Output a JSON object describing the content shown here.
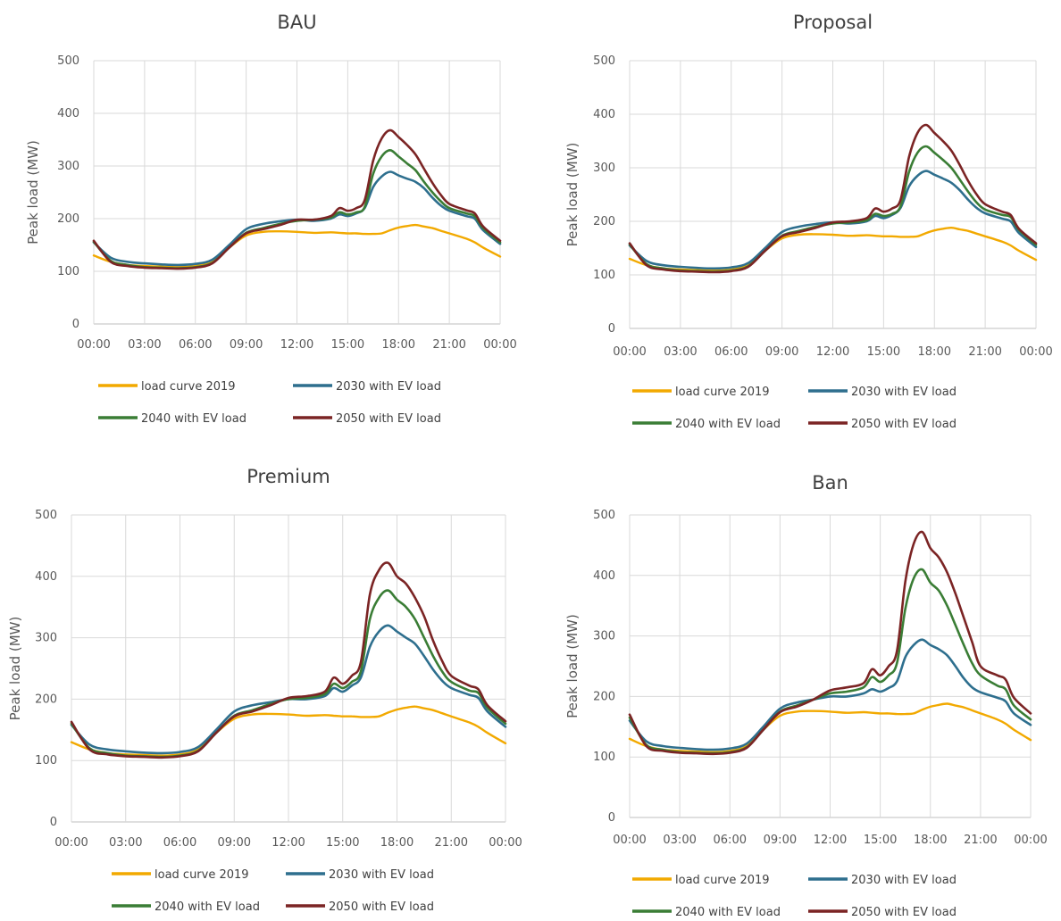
{
  "figure": {
    "legend_labels": [
      "load curve 2019",
      "2030 with EV load",
      "2040 with EV load",
      "2050 with EV load"
    ],
    "colors": [
      "#f2a900",
      "#2e6f8e",
      "#3a7d35",
      "#7b2424"
    ]
  },
  "chart_data": [
    {
      "type": "line",
      "title": "BAU",
      "ylabel": "Peak load (MW)",
      "ylim": [
        0,
        500
      ],
      "y_ticks": [
        "0",
        "100",
        "200",
        "300",
        "400",
        "500"
      ],
      "x_ticks": [
        "00:00",
        "03:00",
        "06:00",
        "09:00",
        "12:00",
        "15:00",
        "18:00",
        "21:00",
        "00:00"
      ],
      "grid": true,
      "legend_position": "bottom",
      "x": [
        0,
        1,
        2,
        3,
        4,
        5,
        6,
        7,
        8,
        9,
        10,
        11,
        12,
        13,
        14,
        14.5,
        15,
        15.5,
        16,
        16.5,
        17,
        17.5,
        18,
        18.5,
        19,
        19.5,
        20,
        20.5,
        21,
        22,
        22.5,
        23,
        24
      ],
      "series": [
        {
          "name": "load curve 2019",
          "values": [
            130,
            118,
            112,
            110,
            109,
            108,
            110,
            118,
            145,
            168,
            175,
            176,
            175,
            173,
            174,
            173,
            172,
            172,
            171,
            171,
            172,
            178,
            183,
            186,
            188,
            185,
            182,
            177,
            172,
            162,
            155,
            145,
            128
          ]
        },
        {
          "name": "2030 with EV load",
          "values": [
            155,
            126,
            118,
            115,
            113,
            112,
            114,
            122,
            150,
            180,
            190,
            195,
            198,
            196,
            200,
            208,
            205,
            210,
            220,
            260,
            280,
            289,
            282,
            276,
            270,
            258,
            240,
            225,
            215,
            205,
            200,
            178,
            152
          ]
        },
        {
          "name": "2040 with EV load",
          "values": [
            156,
            120,
            112,
            108,
            107,
            106,
            108,
            116,
            145,
            173,
            182,
            190,
            196,
            198,
            202,
            212,
            208,
            212,
            222,
            285,
            318,
            330,
            318,
            305,
            292,
            270,
            250,
            233,
            220,
            210,
            205,
            182,
            155
          ]
        },
        {
          "name": "2050 with EV load",
          "values": [
            158,
            118,
            110,
            107,
            106,
            105,
            107,
            115,
            145,
            172,
            180,
            188,
            198,
            198,
            205,
            220,
            215,
            220,
            235,
            310,
            352,
            368,
            355,
            340,
            322,
            295,
            268,
            245,
            228,
            216,
            210,
            185,
            158
          ]
        }
      ]
    },
    {
      "type": "line",
      "title": "Proposal",
      "ylabel": "Peak load (MW)",
      "ylim": [
        0,
        500
      ],
      "y_ticks": [
        "0",
        "100",
        "200",
        "300",
        "400",
        "500"
      ],
      "x_ticks": [
        "00:00",
        "03:00",
        "06:00",
        "09:00",
        "12:00",
        "15:00",
        "18:00",
        "21:00",
        "00:00"
      ],
      "grid": true,
      "legend_position": "bottom",
      "x": [
        0,
        1,
        2,
        3,
        4,
        5,
        6,
        7,
        8,
        9,
        10,
        11,
        12,
        13,
        14,
        14.5,
        15,
        15.5,
        16,
        16.5,
        17,
        17.5,
        18,
        18.5,
        19,
        19.5,
        20,
        20.5,
        21,
        22,
        22.5,
        23,
        24
      ],
      "series": [
        {
          "name": "load curve 2019",
          "values": [
            130,
            118,
            112,
            110,
            109,
            108,
            110,
            118,
            145,
            168,
            175,
            176,
            175,
            173,
            174,
            173,
            172,
            172,
            171,
            171,
            172,
            178,
            183,
            186,
            188,
            185,
            182,
            177,
            172,
            162,
            155,
            145,
            128
          ]
        },
        {
          "name": "2030 with EV load",
          "values": [
            155,
            126,
            118,
            115,
            113,
            112,
            114,
            122,
            150,
            180,
            190,
            195,
            198,
            196,
            200,
            210,
            206,
            212,
            225,
            265,
            285,
            294,
            287,
            280,
            272,
            258,
            240,
            225,
            215,
            205,
            200,
            178,
            152
          ]
        },
        {
          "name": "2040 with EV load",
          "values": [
            157,
            120,
            112,
            108,
            107,
            106,
            108,
            116,
            145,
            173,
            182,
            190,
            196,
            198,
            202,
            214,
            210,
            214,
            228,
            292,
            328,
            340,
            328,
            315,
            300,
            278,
            255,
            235,
            222,
            212,
            208,
            184,
            156
          ]
        },
        {
          "name": "2050 with EV load",
          "values": [
            159,
            118,
            110,
            107,
            106,
            105,
            107,
            115,
            145,
            172,
            180,
            188,
            198,
            200,
            206,
            224,
            218,
            224,
            240,
            320,
            365,
            380,
            365,
            350,
            332,
            305,
            275,
            250,
            232,
            218,
            212,
            186,
            159
          ]
        }
      ]
    },
    {
      "type": "line",
      "title": "Premium",
      "ylabel": "Peak load (MW)",
      "ylim": [
        0,
        500
      ],
      "y_ticks": [
        "0",
        "100",
        "200",
        "300",
        "400",
        "500"
      ],
      "x_ticks": [
        "00:00",
        "03:00",
        "06:00",
        "09:00",
        "12:00",
        "15:00",
        "18:00",
        "21:00",
        "00:00"
      ],
      "grid": true,
      "legend_position": "bottom",
      "x": [
        0,
        1,
        2,
        3,
        4,
        5,
        6,
        7,
        8,
        9,
        10,
        11,
        12,
        13,
        14,
        14.5,
        15,
        15.5,
        16,
        16.5,
        17,
        17.5,
        18,
        18.5,
        19,
        19.5,
        20,
        20.5,
        21,
        22,
        22.5,
        23,
        24
      ],
      "series": [
        {
          "name": "load curve 2019",
          "values": [
            130,
            118,
            112,
            110,
            109,
            108,
            110,
            118,
            145,
            168,
            175,
            176,
            175,
            173,
            174,
            173,
            172,
            172,
            171,
            171,
            172,
            178,
            183,
            186,
            188,
            185,
            182,
            177,
            172,
            162,
            155,
            145,
            128
          ]
        },
        {
          "name": "2030 with EV load",
          "values": [
            158,
            126,
            118,
            115,
            113,
            112,
            114,
            122,
            150,
            180,
            190,
            195,
            200,
            200,
            205,
            218,
            212,
            222,
            235,
            285,
            310,
            320,
            310,
            300,
            290,
            270,
            248,
            230,
            218,
            207,
            202,
            180,
            155
          ]
        },
        {
          "name": "2040 with EV load",
          "values": [
            160,
            120,
            112,
            108,
            107,
            106,
            108,
            116,
            145,
            173,
            182,
            192,
            200,
            202,
            208,
            225,
            218,
            228,
            245,
            330,
            365,
            377,
            362,
            350,
            330,
            300,
            270,
            245,
            228,
            214,
            210,
            186,
            160
          ]
        },
        {
          "name": "2050 with EV load",
          "values": [
            163,
            118,
            110,
            107,
            106,
            105,
            107,
            115,
            145,
            172,
            180,
            190,
            202,
            205,
            212,
            235,
            225,
            238,
            260,
            370,
            410,
            422,
            400,
            388,
            365,
            335,
            295,
            262,
            238,
            222,
            216,
            190,
            164
          ]
        }
      ]
    },
    {
      "type": "line",
      "title": "Ban",
      "ylabel": "Peak load (MW)",
      "ylim": [
        0,
        500
      ],
      "y_ticks": [
        "0",
        "100",
        "200",
        "300",
        "400",
        "500"
      ],
      "x_ticks": [
        "00:00",
        "03:00",
        "06:00",
        "09:00",
        "12:00",
        "15:00",
        "18:00",
        "21:00",
        "00:00"
      ],
      "grid": true,
      "legend_position": "bottom",
      "x": [
        0,
        1,
        2,
        3,
        4,
        5,
        6,
        7,
        8,
        9,
        10,
        11,
        12,
        13,
        14,
        14.5,
        15,
        15.5,
        16,
        16.5,
        17,
        17.5,
        18,
        18.5,
        19,
        19.5,
        20,
        20.5,
        21,
        22,
        22.5,
        23,
        24
      ],
      "series": [
        {
          "name": "load curve 2019",
          "values": [
            130,
            118,
            112,
            110,
            109,
            108,
            110,
            118,
            145,
            168,
            175,
            176,
            175,
            173,
            174,
            173,
            172,
            172,
            171,
            171,
            172,
            178,
            183,
            186,
            188,
            185,
            182,
            177,
            172,
            162,
            155,
            145,
            128
          ]
        },
        {
          "name": "2030 with EV load",
          "values": [
            160,
            126,
            118,
            115,
            113,
            112,
            114,
            122,
            150,
            180,
            190,
            195,
            200,
            200,
            205,
            212,
            208,
            214,
            225,
            265,
            285,
            294,
            285,
            278,
            268,
            250,
            230,
            215,
            207,
            198,
            192,
            172,
            153
          ]
        },
        {
          "name": "2040 with EV load",
          "values": [
            165,
            120,
            112,
            108,
            107,
            106,
            108,
            116,
            145,
            175,
            185,
            195,
            205,
            208,
            215,
            232,
            224,
            235,
            255,
            345,
            395,
            410,
            388,
            375,
            350,
            318,
            285,
            255,
            235,
            218,
            212,
            185,
            162
          ]
        },
        {
          "name": "2050 with EV load",
          "values": [
            170,
            118,
            110,
            107,
            106,
            105,
            107,
            115,
            145,
            174,
            183,
            195,
            210,
            215,
            222,
            245,
            235,
            250,
            275,
            390,
            452,
            472,
            445,
            430,
            405,
            370,
            330,
            290,
            250,
            235,
            228,
            198,
            172
          ]
        }
      ]
    }
  ]
}
